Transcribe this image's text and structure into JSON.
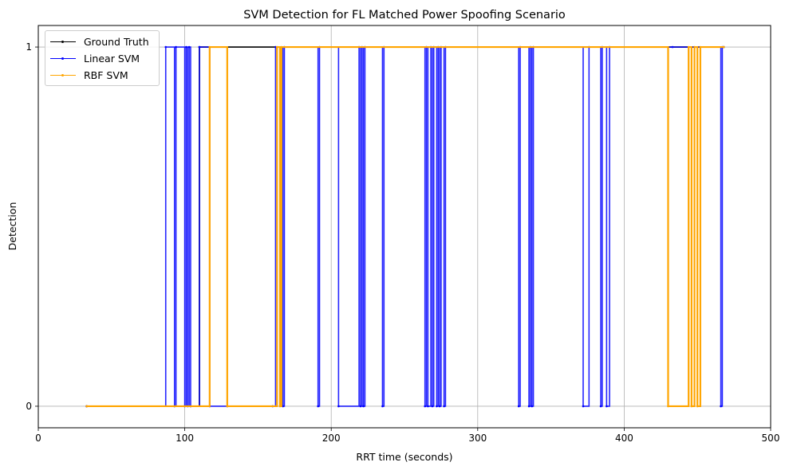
{
  "chart_data": {
    "type": "line",
    "title": "SVM Detection for FL Matched Power Spoofing Scenario",
    "xlabel": "RRT time (seconds)",
    "ylabel": "Detection",
    "xlim": [
      0,
      500
    ],
    "ylim": [
      -0.06,
      1.06
    ],
    "xticks": [
      0,
      100,
      200,
      300,
      400,
      500
    ],
    "yticks": [
      0,
      1
    ],
    "grid": true,
    "legend_position": "upper left",
    "series": [
      {
        "name": "Ground Truth",
        "color": "#000000",
        "x_range": [
          33,
          468
        ],
        "transitions": [
          [
            33,
            0
          ],
          [
            110,
            1
          ],
          [
            468,
            1
          ]
        ]
      },
      {
        "name": "Linear SVM",
        "color": "#0000ff",
        "x_range": [
          33,
          468
        ],
        "transitions": [
          [
            33,
            0
          ],
          [
            87,
            1
          ],
          [
            93,
            0
          ],
          [
            94,
            1
          ],
          [
            100,
            0
          ],
          [
            101,
            1
          ],
          [
            102,
            0
          ],
          [
            103,
            1
          ],
          [
            104,
            0
          ],
          [
            110,
            1
          ],
          [
            117,
            0
          ],
          [
            129,
            0
          ],
          [
            160,
            0
          ],
          [
            162,
            1
          ],
          [
            167,
            0
          ],
          [
            168,
            1
          ],
          [
            191,
            0
          ],
          [
            192,
            1
          ],
          [
            205,
            0
          ],
          [
            219,
            1
          ],
          [
            220,
            0
          ],
          [
            221,
            1
          ],
          [
            222,
            0
          ],
          [
            223,
            1
          ],
          [
            235,
            0
          ],
          [
            236,
            1
          ],
          [
            264,
            0
          ],
          [
            265,
            1
          ],
          [
            266,
            0
          ],
          [
            268,
            1
          ],
          [
            269,
            0
          ],
          [
            270,
            1
          ],
          [
            272,
            0
          ],
          [
            273,
            1
          ],
          [
            274,
            0
          ],
          [
            275,
            1
          ],
          [
            277,
            0
          ],
          [
            278,
            1
          ],
          [
            328,
            0
          ],
          [
            329,
            1
          ],
          [
            335,
            0
          ],
          [
            336,
            1
          ],
          [
            337,
            0
          ],
          [
            338,
            1
          ],
          [
            372,
            0
          ],
          [
            376,
            1
          ],
          [
            384,
            0
          ],
          [
            385,
            1
          ],
          [
            388,
            0
          ],
          [
            390,
            1
          ],
          [
            433,
            1
          ],
          [
            466,
            0
          ],
          [
            467,
            1
          ],
          [
            468,
            1
          ]
        ]
      },
      {
        "name": "RBF SVM",
        "color": "#ffa500",
        "x_range": [
          33,
          468
        ],
        "transitions": [
          [
            33,
            0
          ],
          [
            117,
            1
          ],
          [
            129,
            0
          ],
          [
            163,
            1
          ],
          [
            165,
            0
          ],
          [
            166,
            1
          ],
          [
            430,
            0
          ],
          [
            444,
            1
          ],
          [
            446,
            0
          ],
          [
            448,
            1
          ],
          [
            450,
            0
          ],
          [
            452,
            1
          ],
          [
            468,
            1
          ]
        ]
      }
    ]
  }
}
